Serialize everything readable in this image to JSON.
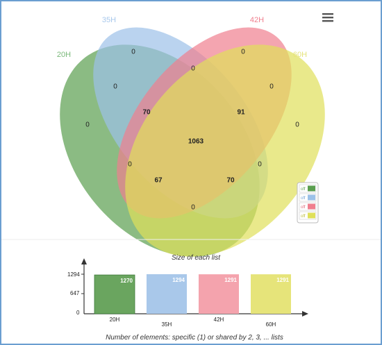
{
  "sets": [
    {
      "name": "20H",
      "color": "#5a9e4f",
      "label_color": "#7ab87a"
    },
    {
      "name": "35H",
      "color": "#9cc1e8",
      "label_color": "#a8c8ec"
    },
    {
      "name": "42H",
      "color": "#f07f8e",
      "label_color": "#f07f8e"
    },
    {
      "name": "60H",
      "color": "#dfe05a",
      "label_color": "#e6e37a"
    }
  ],
  "regions": {
    "only_20H": "0",
    "only_35H": "0",
    "only_42H": "0",
    "only_60H": "0",
    "20H_35H": "0",
    "35H_42H": "0",
    "42H_60H": "0",
    "20H_60H": "0",
    "20H_42H": "0",
    "35H_60H": "0",
    "20H_35H_42H": "70",
    "35H_42H_60H": "91",
    "20H_42H_60H": "67",
    "20H_35H_60H": "70",
    "all": "1063"
  },
  "legend": {
    "items": [
      {
        "label": "off",
        "color": "#5a9e4f"
      },
      {
        "label": "off",
        "color": "#9cc1e8"
      },
      {
        "label": "off",
        "color": "#f07f8e"
      },
      {
        "label": "off",
        "color": "#dfe05a"
      }
    ]
  },
  "menu_icon": "hamburger-menu-icon",
  "bar_chart": {
    "title": "Size of each list",
    "footer": "Number of elements: specific (1) or shared by 2, 3, ... lists",
    "y_ticks": [
      "1294",
      "647",
      "0"
    ]
  },
  "chart_data": {
    "type": "bar",
    "title": "Size of each list",
    "xlabel": "Number of elements: specific (1) or shared by 2, 3, ... lists",
    "ylabel": "",
    "categories": [
      "20H",
      "35H",
      "42H",
      "60H"
    ],
    "values": [
      1270,
      1294,
      1291,
      1291
    ],
    "colors": [
      "#6aa55f",
      "#a9c8ea",
      "#f4a3ad",
      "#e6e47a"
    ],
    "ylim": [
      0,
      1294
    ],
    "y_ticks": [
      0,
      647,
      1294
    ]
  }
}
